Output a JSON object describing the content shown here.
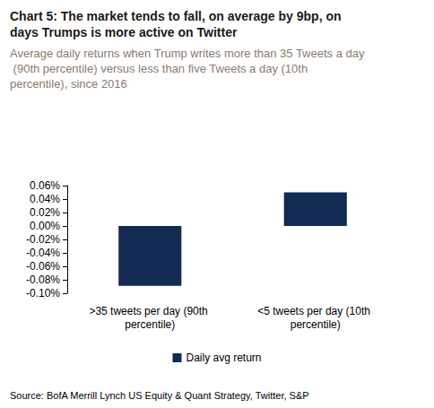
{
  "chart_data": {
    "type": "bar",
    "title": "Chart 5: The market tends to fall, on average by 9bp, on days Trumps is more active on Twitter",
    "subtitle": "Average daily returns when Trump writes more than 35 Tweets a day (90th percentile) versus less than five Tweets a day (10th percentile), since 2016",
    "source": "Source: BofA Merrill Lynch US Equity & Quant Strategy, Twitter, S&P",
    "categories": [
      ">35 tweets per day (90th percentile)",
      "<5 tweets per day (10th percentile)"
    ],
    "series": [
      {
        "name": "Daily avg return",
        "color": "#132a52",
        "values": [
          -0.089,
          0.05
        ]
      }
    ],
    "ylim": [
      -0.1,
      0.06
    ],
    "yticks": [
      {
        "value": -0.1,
        "label": "-0.10%"
      },
      {
        "value": -0.08,
        "label": "-0.08%"
      },
      {
        "value": -0.06,
        "label": "-0.06%"
      },
      {
        "value": -0.04,
        "label": "-0.04%"
      },
      {
        "value": -0.02,
        "label": "-0.02%"
      },
      {
        "value": 0,
        "label": "0.00%"
      },
      {
        "value": 0.02,
        "label": "0.02%"
      },
      {
        "value": 0.04,
        "label": "0.04%"
      },
      {
        "value": 0.06,
        "label": "0.06%"
      }
    ],
    "grid": false,
    "legend": "bottom"
  }
}
